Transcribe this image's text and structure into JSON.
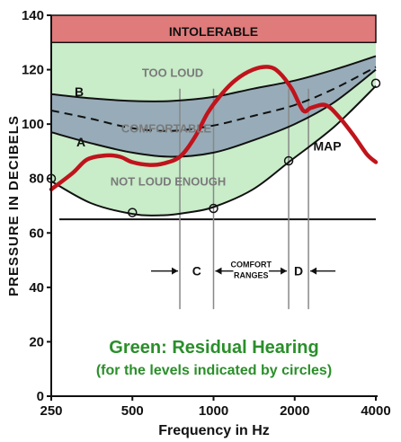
{
  "chart_data": {
    "type": "line",
    "xlabel": "Frequency in Hz",
    "ylabel": "PRESSURE   IN   DECIBELS",
    "x_scale": "log",
    "x_ticks": [
      250,
      500,
      1000,
      2000,
      4000
    ],
    "x_tick_labels": [
      "250",
      "500",
      "1000",
      "2000",
      "4000"
    ],
    "y_ticks": [
      0,
      20,
      40,
      60,
      80,
      100,
      120,
      140
    ],
    "y_tick_labels": [
      "0",
      "20",
      "40",
      "60",
      "80",
      "100",
      "120",
      "140"
    ],
    "xlim": [
      250,
      4000
    ],
    "ylim": [
      0,
      140
    ],
    "band_label": "INTOLERABLE",
    "band_range": [
      130,
      140
    ],
    "zone_labels": {
      "too_loud": "TOO LOUD",
      "comfortable": "COMFORTABLE",
      "not_loud": "NOT LOUD ENOUGH"
    },
    "curve_labels": {
      "b": "B",
      "a": "A",
      "map": "MAP"
    },
    "range_labels": {
      "c": "C",
      "comfort": "COMFORT",
      "ranges": "RANGES",
      "d": "D"
    },
    "note_line1": "Green: Residual Hearing",
    "note_line2": "(for the levels indicated by circles)",
    "colors": {
      "band": "#e07b7b",
      "residual": "#c9ecc9",
      "comfort": "#97acb8",
      "map": "#c0141c",
      "note": "#2a8f2a"
    },
    "series": [
      {
        "name": "B",
        "x": [
          250,
          350,
          500,
          700,
          1000,
          1400,
          2000,
          2800,
          4000
        ],
        "y": [
          111,
          109.5,
          108.5,
          108.5,
          110,
          113,
          116,
          120,
          125
        ]
      },
      {
        "name": "A",
        "x": [
          250,
          350,
          500,
          700,
          1000,
          1400,
          2000,
          2800,
          4000
        ],
        "y": [
          97,
          93,
          89.5,
          88,
          89.5,
          94,
          100,
          108,
          120
        ]
      },
      {
        "name": "Comfortable midline",
        "x": [
          250,
          350,
          500,
          700,
          1000,
          1400,
          2000,
          2800,
          4000
        ],
        "y": [
          105,
          102,
          98.5,
          97.5,
          99.5,
          103,
          107,
          113,
          121
        ]
      },
      {
        "name": "Residual hearing threshold",
        "x": [
          250,
          350,
          500,
          650,
          800,
          1000,
          1400,
          1900,
          2800,
          4000
        ],
        "y": [
          79,
          71,
          67,
          66.5,
          67.5,
          69.5,
          76,
          86,
          99,
          114
        ]
      },
      {
        "name": "MAP",
        "x": [
          250,
          300,
          340,
          400,
          450,
          500,
          580,
          650,
          750,
          850,
          950,
          1050,
          1200,
          1400,
          1600,
          1750,
          1950,
          2150,
          2300,
          2600,
          2900,
          3300,
          3700,
          4000
        ],
        "y": [
          76,
          82,
          87,
          88.5,
          88,
          86,
          85,
          85.5,
          88,
          95,
          104,
          110,
          116,
          120,
          121,
          119,
          113,
          105,
          106,
          107,
          103,
          96,
          89,
          86
        ]
      }
    ],
    "circle_points": {
      "x": [
        250,
        500,
        1000,
        1900,
        4000
      ],
      "y": [
        80,
        67.5,
        69,
        86.5,
        115
      ]
    },
    "comfort_range_markers_hz": [
      750,
      1000,
      1900,
      2250
    ]
  }
}
